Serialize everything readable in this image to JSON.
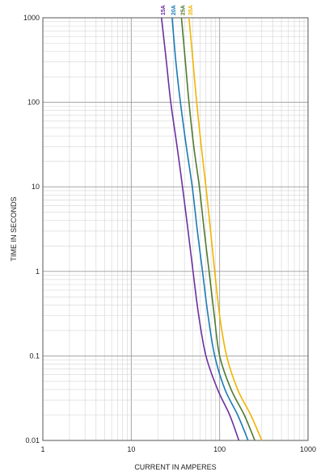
{
  "chart_data": {
    "type": "line",
    "xlabel": "CURRENT IN AMPERES",
    "ylabel": "TIME IN SECONDS",
    "x_scale": "log",
    "y_scale": "log",
    "xlim": [
      1,
      1000
    ],
    "ylim": [
      0.01,
      1000
    ],
    "x_ticks": [
      "1",
      "10",
      "100",
      "1000"
    ],
    "y_ticks": [
      "1000",
      "100",
      "10",
      "1",
      "0.1",
      "0.01"
    ],
    "grid": true,
    "series": [
      {
        "name": "15A",
        "color": "#6b2fa0",
        "points": [
          [
            22,
            1000
          ],
          [
            25,
            300
          ],
          [
            28,
            100
          ],
          [
            33,
            30
          ],
          [
            38,
            10
          ],
          [
            44,
            3
          ],
          [
            50,
            1
          ],
          [
            58,
            0.3
          ],
          [
            70,
            0.1
          ],
          [
            95,
            0.04
          ],
          [
            130,
            0.02
          ],
          [
            165,
            0.01
          ]
        ]
      },
      {
        "name": "20A",
        "color": "#1a7ab5",
        "points": [
          [
            29,
            1000
          ],
          [
            32,
            300
          ],
          [
            36,
            100
          ],
          [
            42,
            30
          ],
          [
            49,
            10
          ],
          [
            56,
            3
          ],
          [
            64,
            1
          ],
          [
            74,
            0.3
          ],
          [
            88,
            0.1
          ],
          [
            115,
            0.04
          ],
          [
            160,
            0.02
          ],
          [
            210,
            0.01
          ]
        ]
      },
      {
        "name": "25A",
        "color": "#4f7a2c",
        "points": [
          [
            37,
            1000
          ],
          [
            41,
            300
          ],
          [
            45,
            100
          ],
          [
            51,
            30
          ],
          [
            59,
            10
          ],
          [
            67,
            3
          ],
          [
            76,
            1
          ],
          [
            87,
            0.3
          ],
          [
            100,
            0.1
          ],
          [
            135,
            0.04
          ],
          [
            190,
            0.02
          ],
          [
            250,
            0.01
          ]
        ]
      },
      {
        "name": "35A",
        "color": "#f0b400",
        "points": [
          [
            45,
            1000
          ],
          [
            50,
            300
          ],
          [
            55,
            100
          ],
          [
            62,
            30
          ],
          [
            70,
            10
          ],
          [
            79,
            3
          ],
          [
            88,
            1
          ],
          [
            100,
            0.3
          ],
          [
            120,
            0.1
          ],
          [
            160,
            0.04
          ],
          [
            225,
            0.02
          ],
          [
            300,
            0.01
          ]
        ]
      }
    ]
  }
}
